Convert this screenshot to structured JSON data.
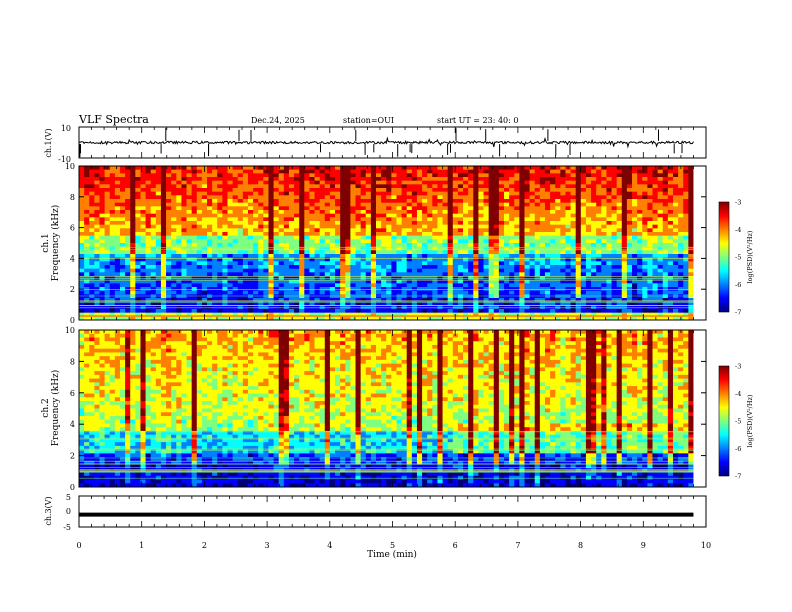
{
  "header": {
    "title": "VLF Spectra",
    "date": "Dec.24, 2025",
    "station": "station=OUI",
    "start": "start UT =  23: 40: 0"
  },
  "colors": {
    "jet": [
      "#00007f",
      "#0000ff",
      "#007fff",
      "#00ffff",
      "#7fff7f",
      "#ffff00",
      "#ff7f00",
      "#ff0000",
      "#7f0000"
    ],
    "axis": "#000000",
    "trace": "#000000"
  },
  "chart_data": [
    {
      "type": "line",
      "panel": "ch1-waveform",
      "ylabel": "ch.1(V)",
      "ylim": [
        -10,
        10
      ],
      "yticks": [
        "10",
        "-10"
      ],
      "xlim": [
        0,
        10
      ],
      "x": [
        0,
        1,
        2,
        3,
        4,
        5,
        6,
        7,
        8,
        9,
        9.8
      ],
      "values": [
        0,
        0,
        0,
        0,
        0,
        0,
        0,
        0,
        0,
        0,
        0
      ],
      "note_level": 0
    },
    {
      "type": "heatmap",
      "panel": "ch1-spectrogram",
      "ylabel_top": "ch.1",
      "ylabel": "Frequency (kHz)",
      "ylim": [
        0,
        10
      ],
      "yticks": [
        "0",
        "2",
        "4",
        "6",
        "8",
        "10"
      ],
      "xlim": [
        0,
        10
      ],
      "data_xmax": 9.8,
      "colorbar": {
        "label": "log(PSD)(V²/Hz)",
        "range": [
          -7,
          -3
        ],
        "ticks": [
          "-3",
          "-4",
          "-5",
          "-6",
          "-7"
        ]
      }
    },
    {
      "type": "heatmap",
      "panel": "ch2-spectrogram",
      "ylabel_top": "ch.2",
      "ylabel": "Frequency (kHz)",
      "ylim": [
        0,
        10
      ],
      "yticks": [
        "0",
        "2",
        "4",
        "6",
        "8",
        "10"
      ],
      "xlim": [
        0,
        10
      ],
      "data_xmax": 9.8,
      "colorbar": {
        "label": "log(PSD)(V²/Hz)",
        "range": [
          -7,
          -3
        ],
        "ticks": [
          "-3",
          "-4",
          "-5",
          "-6",
          "-7"
        ]
      }
    },
    {
      "type": "line",
      "panel": "ch3-waveform",
      "ylabel": "ch.3(V)",
      "ylim": [
        -5,
        5
      ],
      "yticks": [
        "5",
        "0",
        "-5"
      ],
      "xlim": [
        0,
        10
      ],
      "x": [
        0,
        9.8
      ],
      "values": [
        -1,
        -1
      ]
    }
  ],
  "xaxis": {
    "label": "Time (min)",
    "ticks": [
      "0",
      "1",
      "2",
      "3",
      "4",
      "5",
      "6",
      "7",
      "8",
      "9",
      "10"
    ]
  }
}
